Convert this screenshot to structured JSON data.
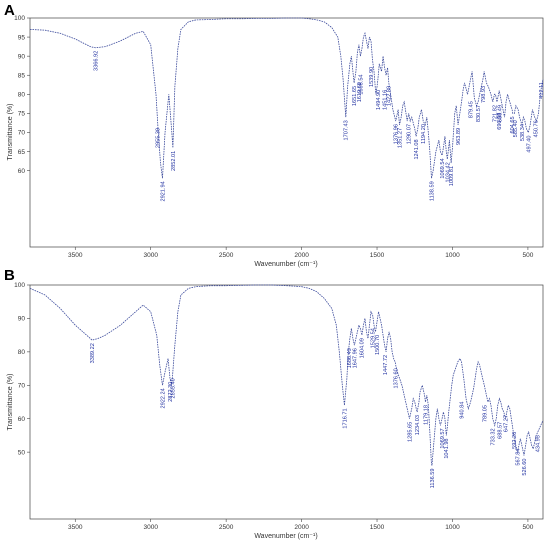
{
  "chart_data": [
    {
      "type": "line",
      "panel": "A",
      "title": "",
      "xlabel": "Wavenumber (cm⁻¹)",
      "ylabel": "Transmittance (%)",
      "xlim": [
        3800,
        400
      ],
      "x_reversed": true,
      "ylim": [
        40,
        100
      ],
      "xticks": [
        3500,
        3000,
        2500,
        2000,
        1500,
        1000,
        500
      ],
      "yticks": [
        60,
        65,
        70,
        75,
        80,
        85,
        90,
        95,
        100
      ],
      "grid": false,
      "legend": "none",
      "color": "#3c4b9c",
      "series": [
        {
          "x": [
            3800,
            3700,
            3600,
            3500,
            3400,
            3367,
            3300,
            3200,
            3100,
            3050,
            3000,
            2965,
            2950,
            2935,
            2922,
            2905,
            2880,
            2860,
            2853,
            2840,
            2820,
            2800,
            2750,
            2700,
            2600,
            2500,
            2400,
            2300,
            2200,
            2100,
            2000,
            1950,
            1900,
            1850,
            1800,
            1760,
            1740,
            1725,
            1707,
            1695,
            1680,
            1670,
            1660,
            1652,
            1640,
            1630,
            1620,
            1610,
            1600,
            1590,
            1580,
            1570,
            1560,
            1550,
            1540,
            1530,
            1520,
            1508,
            1500,
            1494,
            1485,
            1470,
            1460,
            1450,
            1440,
            1430,
            1422,
            1410,
            1395,
            1376,
            1360,
            1351,
            1340,
            1330,
            1320,
            1300,
            1290,
            1280,
            1270,
            1250,
            1241,
            1230,
            1220,
            1205,
            1194,
            1180,
            1170,
            1160,
            1150,
            1139,
            1128,
            1110,
            1090,
            1080,
            1069,
            1060,
            1050,
            1041,
            1034,
            1020,
            1009,
            1000,
            985,
            975,
            963,
            955,
            940,
            930,
            920,
            900,
            880,
            870,
            855,
            840,
            830,
            820,
            798,
            790,
            775,
            762,
            745,
            733,
            722,
            715,
            705,
            690,
            665,
            655,
            645,
            635,
            620,
            605,
            600,
            590,
            580,
            565,
            555,
            540,
            530,
            520,
            510,
            497,
            485,
            470,
            455,
            443,
            430,
            420,
            410,
            400
          ],
          "y": [
            97.0,
            96.8,
            96.0,
            94.5,
            92.5,
            92.2,
            92.5,
            94.0,
            96.0,
            96.5,
            93.0,
            80.0,
            70.0,
            62.0,
            58.0,
            70.0,
            80.0,
            70.0,
            66.0,
            82.0,
            92.0,
            97.0,
            99.0,
            99.5,
            99.6,
            99.8,
            99.8,
            99.9,
            99.9,
            100.0,
            100.0,
            99.8,
            99.5,
            99.0,
            97.5,
            95.0,
            90.0,
            84.0,
            74.0,
            82.0,
            88.0,
            90.0,
            86.0,
            83.0,
            86.0,
            91.0,
            93.0,
            90.0,
            92.0,
            95.0,
            96.0,
            94.0,
            92.0,
            95.0,
            94.0,
            89.0,
            86.0,
            80.0,
            82.0,
            84.0,
            88.0,
            86.0,
            90.0,
            87.0,
            85.0,
            87.0,
            83.0,
            80.0,
            76.0,
            73.0,
            76.0,
            72.0,
            74.0,
            77.0,
            78.0,
            73.0,
            75.0,
            73.0,
            74.0,
            71.0,
            69.0,
            71.0,
            74.0,
            76.0,
            73.0,
            72.0,
            74.0,
            70.0,
            65.0,
            58.0,
            60.0,
            65.0,
            68.0,
            65.0,
            64.0,
            66.0,
            69.0,
            65.0,
            63.0,
            68.0,
            62.0,
            66.0,
            75.0,
            77.0,
            72.0,
            74.0,
            78.0,
            81.0,
            83.0,
            80.0,
            84.0,
            86.0,
            79.0,
            77.0,
            78.0,
            80.0,
            84.0,
            86.0,
            83.0,
            82.0,
            80.0,
            78.0,
            80.0,
            80.0,
            78.0,
            81.0,
            76.0,
            74.0,
            78.0,
            80.0,
            78.0,
            76.0,
            75.0,
            75.0,
            77.0,
            76.0,
            74.0,
            72.0,
            74.0,
            73.0,
            71.0,
            70.0,
            72.0,
            76.0,
            74.0,
            73.0,
            75.0,
            79.0,
            82.0,
            84.0
          ]
        }
      ],
      "peak_labels": [
        {
          "text": "3366.92",
          "x": 3366.92,
          "y": 92.2
        },
        {
          "text": "2955.39",
          "x": 2955.39,
          "y": 72.0
        },
        {
          "text": "2921.94",
          "x": 2921.94,
          "y": 58.0
        },
        {
          "text": "2852.01",
          "x": 2852.01,
          "y": 66.0
        },
        {
          "text": "1707.43",
          "x": 1707.43,
          "y": 74.0
        },
        {
          "text": "1651.65",
          "x": 1651.65,
          "y": 83.0
        },
        {
          "text": "1619.69",
          "x": 1619.69,
          "y": 84.0
        },
        {
          "text": "1608.54",
          "x": 1608.54,
          "y": 86.0
        },
        {
          "text": "1539.90",
          "x": 1539.9,
          "y": 88.0
        },
        {
          "text": "1494.90",
          "x": 1494.9,
          "y": 82.0
        },
        {
          "text": "1451.16",
          "x": 1451.16,
          "y": 82.0
        },
        {
          "text": "1422.89",
          "x": 1422.89,
          "y": 83.0
        },
        {
          "text": "1376.96",
          "x": 1376.96,
          "y": 73.0
        },
        {
          "text": "1351.27",
          "x": 1351.27,
          "y": 72.0
        },
        {
          "text": "1290.07",
          "x": 1290.07,
          "y": 73.0
        },
        {
          "text": "1241.08",
          "x": 1241.08,
          "y": 69.0
        },
        {
          "text": "1194.20",
          "x": 1194.2,
          "y": 73.0
        },
        {
          "text": "1138.59",
          "x": 1138.59,
          "y": 58.0
        },
        {
          "text": "1069.54",
          "x": 1069.54,
          "y": 64.0
        },
        {
          "text": "1034.42",
          "x": 1034.42,
          "y": 63.0
        },
        {
          "text": "1009.81",
          "x": 1009.81,
          "y": 62.0
        },
        {
          "text": "963.89",
          "x": 963.89,
          "y": 72.0
        },
        {
          "text": "879.45",
          "x": 879.45,
          "y": 79.0
        },
        {
          "text": "830.57",
          "x": 830.57,
          "y": 78.0
        },
        {
          "text": "798.93",
          "x": 798.93,
          "y": 83.0
        },
        {
          "text": "721.82",
          "x": 721.82,
          "y": 78.0
        },
        {
          "text": "690.58",
          "x": 690.58,
          "y": 76.0
        },
        {
          "text": "688.49",
          "x": 688.49,
          "y": 78.0
        },
        {
          "text": "604.65",
          "x": 604.65,
          "y": 75.0
        },
        {
          "text": "585.40",
          "x": 585.4,
          "y": 74.0
        },
        {
          "text": "538.34",
          "x": 538.34,
          "y": 73.0
        },
        {
          "text": "497.40",
          "x": 497.4,
          "y": 70.0
        },
        {
          "text": "450.76",
          "x": 450.76,
          "y": 74.0
        },
        {
          "text": "412.11",
          "x": 412.11,
          "y": 84.0
        }
      ]
    },
    {
      "type": "line",
      "panel": "B",
      "title": "",
      "xlabel": "Wavenumber (cm⁻¹)",
      "ylabel": "Transmittance (%)",
      "xlim": [
        3800,
        400
      ],
      "x_reversed": true,
      "ylim": [
        30,
        100
      ],
      "xticks": [
        3500,
        3000,
        2500,
        2000,
        1500,
        1000,
        500
      ],
      "yticks": [
        50,
        60,
        70,
        80,
        90,
        100
      ],
      "grid": false,
      "legend": "none",
      "color": "#3c4b9c",
      "series": [
        {
          "x": [
            3800,
            3700,
            3600,
            3500,
            3450,
            3400,
            3389,
            3350,
            3300,
            3200,
            3100,
            3050,
            3000,
            2960,
            2940,
            2922,
            2905,
            2885,
            2872,
            2862,
            2855,
            2840,
            2820,
            2800,
            2750,
            2700,
            2600,
            2500,
            2400,
            2300,
            2200,
            2100,
            2000,
            1950,
            1900,
            1850,
            1800,
            1770,
            1750,
            1730,
            1716,
            1700,
            1690,
            1680,
            1670,
            1660,
            1650,
            1640,
            1630,
            1620,
            1610,
            1600,
            1590,
            1580,
            1570,
            1560,
            1550,
            1540,
            1529,
            1520,
            1510,
            1500,
            1490,
            1480,
            1470,
            1460,
            1450,
            1440,
            1430,
            1420,
            1410,
            1400,
            1390,
            1380,
            1376,
            1365,
            1350,
            1335,
            1320,
            1305,
            1295,
            1285,
            1270,
            1260,
            1250,
            1240,
            1234,
            1222,
            1215,
            1200,
            1185,
            1179,
            1170,
            1160,
            1150,
            1140,
            1136,
            1125,
            1110,
            1100,
            1090,
            1080,
            1069,
            1060,
            1050,
            1041,
            1035,
            1025,
            1015,
            1005,
            995,
            980,
            965,
            950,
            940,
            925,
            910,
            895,
            880,
            870,
            860,
            850,
            840,
            830,
            820,
            810,
            800,
            789,
            775,
            765,
            755,
            745,
            733,
            720,
            710,
            700,
            689,
            680,
            670,
            660,
            648,
            640,
            630,
            620,
            610,
            600,
            590,
            580,
            568,
            560,
            550,
            540,
            526,
            515,
            505,
            495,
            485,
            475,
            465,
            455,
            445,
            435,
            425,
            415,
            405,
            400
          ],
          "y": [
            99.0,
            97.0,
            93.0,
            88.0,
            86.0,
            84.0,
            83.5,
            84.0,
            85.0,
            88.0,
            92.0,
            94.0,
            92.0,
            85.0,
            76.0,
            70.0,
            74.0,
            78.0,
            72.0,
            70.0,
            73.0,
            82.0,
            92.0,
            97.0,
            99.0,
            99.5,
            99.8,
            99.8,
            99.9,
            100.0,
            100.0,
            99.8,
            99.5,
            99.0,
            98.0,
            96.0,
            93.0,
            88.0,
            80.0,
            70.0,
            64.0,
            72.0,
            80.0,
            84.0,
            87.0,
            84.0,
            82.0,
            84.0,
            86.0,
            88.0,
            87.0,
            85.0,
            88.0,
            90.0,
            86.0,
            84.0,
            88.0,
            92.0,
            91.0,
            88.0,
            86.0,
            89.0,
            92.0,
            90.0,
            88.0,
            85.0,
            82.0,
            80.0,
            84.0,
            86.0,
            84.0,
            80.0,
            78.0,
            77.0,
            76.0,
            74.0,
            72.0,
            70.0,
            67.0,
            64.0,
            62.0,
            60.0,
            63.0,
            66.0,
            65.0,
            63.0,
            62.0,
            65.0,
            68.0,
            70.0,
            67.0,
            65.0,
            67.0,
            64.0,
            56.0,
            47.0,
            46.0,
            52.0,
            60.0,
            63.0,
            60.0,
            58.0,
            60.0,
            62.0,
            60.0,
            55.0,
            57.0,
            62.0,
            66.0,
            70.0,
            73.0,
            75.0,
            77.0,
            78.0,
            77.0,
            72.0,
            66.0,
            63.0,
            65.0,
            67.0,
            69.0,
            72.0,
            75.0,
            77.0,
            76.0,
            74.0,
            72.0,
            70.0,
            67.0,
            65.0,
            66.0,
            64.0,
            60.0,
            58.0,
            60.0,
            64.0,
            66.0,
            65.0,
            63.0,
            62.0,
            60.0,
            62.0,
            64.0,
            63.0,
            60.0,
            57.0,
            54.0,
            52.0,
            50.0,
            52.0,
            54.0,
            52.0,
            49.0,
            52.0,
            55.0,
            56.0,
            54.0,
            52.0,
            51.0,
            53.0,
            55.0,
            56.0,
            57.0,
            58.0,
            59.0,
            59.5
          ]
        }
      ],
      "peak_labels": [
        {
          "text": "3389.22",
          "x": 3389.22,
          "y": 83.5
        },
        {
          "text": "2922.24",
          "x": 2922.24,
          "y": 70.0
        },
        {
          "text": "2855.40",
          "x": 2855.4,
          "y": 73.0
        },
        {
          "text": "2872.30",
          "x": 2872.3,
          "y": 72.0
        },
        {
          "text": "1716.71",
          "x": 1716.71,
          "y": 64.0
        },
        {
          "text": "1686.49",
          "x": 1686.49,
          "y": 82.0
        },
        {
          "text": "1647.96",
          "x": 1647.96,
          "y": 82.0
        },
        {
          "text": "1604.09",
          "x": 1604.09,
          "y": 85.0
        },
        {
          "text": "1529.54",
          "x": 1529.54,
          "y": 88.0
        },
        {
          "text": "1500.70",
          "x": 1500.7,
          "y": 86.0
        },
        {
          "text": "1447.72",
          "x": 1447.72,
          "y": 80.0
        },
        {
          "text": "1376.60",
          "x": 1376.6,
          "y": 76.0
        },
        {
          "text": "1285.65",
          "x": 1285.65,
          "y": 60.0
        },
        {
          "text": "1234.03",
          "x": 1234.03,
          "y": 62.0
        },
        {
          "text": "1179.18",
          "x": 1179.18,
          "y": 65.0
        },
        {
          "text": "1136.59",
          "x": 1136.59,
          "y": 46.0
        },
        {
          "text": "1069.57",
          "x": 1069.57,
          "y": 58.0
        },
        {
          "text": "1041.98",
          "x": 1041.98,
          "y": 55.0
        },
        {
          "text": "940.84",
          "x": 940.84,
          "y": 66.0
        },
        {
          "text": "789.05",
          "x": 789.05,
          "y": 65.0
        },
        {
          "text": "733.32",
          "x": 733.32,
          "y": 58.0
        },
        {
          "text": "688.57",
          "x": 688.57,
          "y": 60.0
        },
        {
          "text": "647.27",
          "x": 647.27,
          "y": 62.0
        },
        {
          "text": "592.26",
          "x": 592.26,
          "y": 57.0
        },
        {
          "text": "567.84",
          "x": 567.84,
          "y": 52.0
        },
        {
          "text": "526.60",
          "x": 526.6,
          "y": 49.0
        },
        {
          "text": "434.95",
          "x": 434.95,
          "y": 56.0
        }
      ]
    }
  ]
}
